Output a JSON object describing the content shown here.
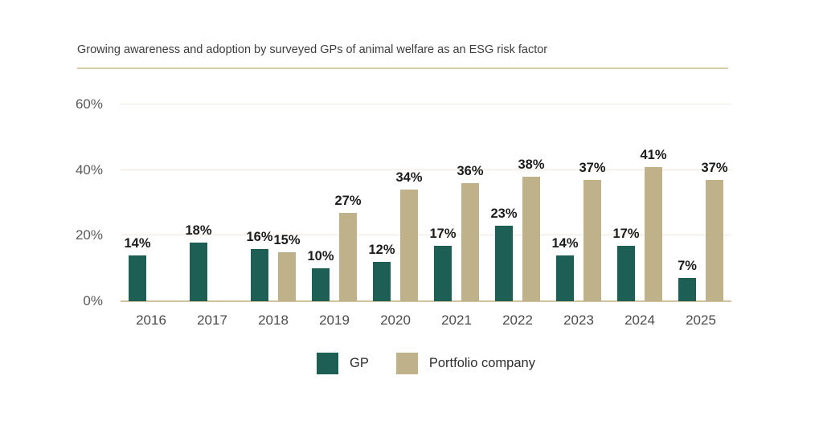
{
  "header": {
    "title": "Growing awareness and adoption by surveyed GPs of animal welfare as an ESG risk factor"
  },
  "colors": {
    "gp_bar": "#1e5f55",
    "portfolio_bar": "#bfb28a",
    "gridline": "#f1ead9",
    "baseline": "#cfc3a0",
    "title_rule": "#d8cdab",
    "axis_text": "#5a5a5a",
    "value_label_text": "#1c1c1c"
  },
  "chart_data": {
    "type": "bar",
    "title": "Growing awareness and adoption by surveyed GPs of animal welfare as an ESG risk factor",
    "xlabel": "",
    "ylabel": "",
    "categories": [
      "2016",
      "2017",
      "2018",
      "2019",
      "2020",
      "2021",
      "2022",
      "2023",
      "2024",
      "2025"
    ],
    "series": [
      {
        "name": "GP",
        "color": "#1e5f55",
        "values": [
          14,
          18,
          16,
          10,
          12,
          17,
          23,
          14,
          17,
          7
        ]
      },
      {
        "name": "Portfolio company",
        "color": "#bfb28a",
        "values": [
          null,
          null,
          15,
          27,
          34,
          36,
          38,
          37,
          41,
          37
        ]
      }
    ],
    "value_suffix": "%",
    "data_labels": true,
    "ylim": [
      0,
      60
    ],
    "yticks": [
      {
        "value": 0,
        "label": "0%"
      },
      {
        "value": 20,
        "label": "20%"
      },
      {
        "value": 40,
        "label": "40%"
      },
      {
        "value": 60,
        "label": "60%"
      }
    ],
    "grid": true,
    "legend_position": "bottom"
  }
}
